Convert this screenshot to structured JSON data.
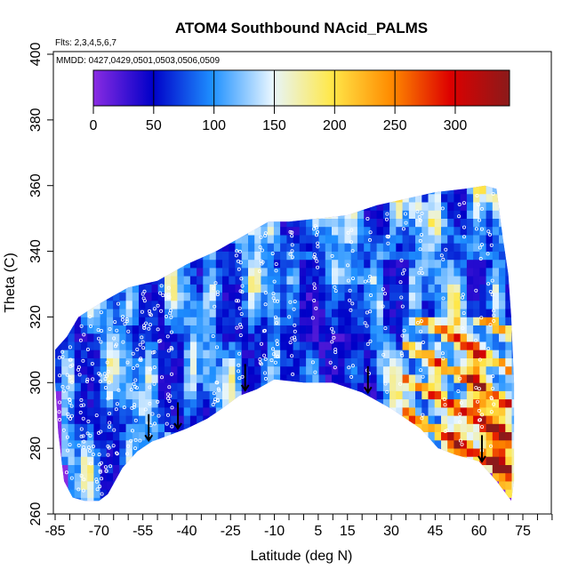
{
  "chart_data": {
    "type": "heatmap",
    "title": "ATOM4 Southbound NAcid_PALMS",
    "annotation_flights": "Flts: 2,3,4,5,6,7",
    "annotation_dates": "MMDD: 0427,0429,0501,0503,0506,0509",
    "xlabel": "Latitude (deg N)",
    "ylabel": "Theta (C)",
    "xlim": [
      -88,
      88
    ],
    "ylim": [
      260,
      402
    ],
    "x_ticks": [
      -85,
      -70,
      -55,
      -40,
      -25,
      -10,
      5,
      15,
      30,
      45,
      60,
      75
    ],
    "x_tick_labels": [
      "-85",
      "-70",
      "-55",
      "-40",
      "-25",
      "-10",
      "5",
      "15",
      "30",
      "45",
      "60",
      "75"
    ],
    "y_ticks": [
      260,
      280,
      300,
      320,
      340,
      360,
      380,
      400
    ],
    "y_tick_labels": [
      "260",
      "280",
      "300",
      "320",
      "340",
      "360",
      "380",
      "400"
    ],
    "colorbar": {
      "min": 0,
      "max": 345,
      "ticks": [
        0,
        50,
        100,
        150,
        200,
        250,
        300
      ],
      "tick_labels": [
        "0",
        "50",
        "100",
        "150",
        "200",
        "250",
        "300"
      ],
      "colors": [
        "#8a2be2",
        "#0000c8",
        "#1e90ff",
        "#e6f5ff",
        "#ffe84a",
        "#ff8c00",
        "#dd0000",
        "#8b1a1a"
      ],
      "legend_position": "top"
    },
    "upper_boundary": [
      [
        -85,
        310
      ],
      [
        -81,
        314
      ],
      [
        -77,
        320
      ],
      [
        -70,
        324
      ],
      [
        -60,
        329
      ],
      [
        -50,
        331
      ],
      [
        -40,
        336
      ],
      [
        -30,
        340
      ],
      [
        -20,
        345
      ],
      [
        -12,
        349
      ],
      [
        -5,
        349
      ],
      [
        5,
        350
      ],
      [
        15,
        351
      ],
      [
        25,
        354
      ],
      [
        35,
        356
      ],
      [
        45,
        358
      ],
      [
        55,
        359
      ],
      [
        62,
        360
      ],
      [
        66,
        359
      ],
      [
        68,
        345
      ],
      [
        70,
        333
      ],
      [
        71,
        320
      ],
      [
        72,
        300
      ],
      [
        72,
        285
      ],
      [
        72,
        270
      ],
      [
        71,
        264
      ]
    ],
    "lower_boundary": [
      [
        -85,
        300
      ],
      [
        -84,
        285
      ],
      [
        -82,
        270
      ],
      [
        -79,
        265
      ],
      [
        -75,
        264
      ],
      [
        -70,
        264
      ],
      [
        -67,
        266
      ],
      [
        -62,
        274
      ],
      [
        -57,
        279
      ],
      [
        -52,
        282
      ],
      [
        -46,
        284
      ],
      [
        -40,
        286
      ],
      [
        -33,
        289
      ],
      [
        -28,
        292
      ],
      [
        -22,
        296
      ],
      [
        -16,
        298
      ],
      [
        -10,
        301
      ],
      [
        0,
        300
      ],
      [
        10,
        300
      ],
      [
        20,
        297
      ],
      [
        30,
        292
      ],
      [
        40,
        286
      ],
      [
        46,
        280
      ],
      [
        52,
        278
      ],
      [
        60,
        276
      ],
      [
        66,
        270
      ],
      [
        71,
        264
      ]
    ],
    "arrows_at_latitude": [
      -53,
      -43,
      -20,
      22,
      61
    ]
  }
}
